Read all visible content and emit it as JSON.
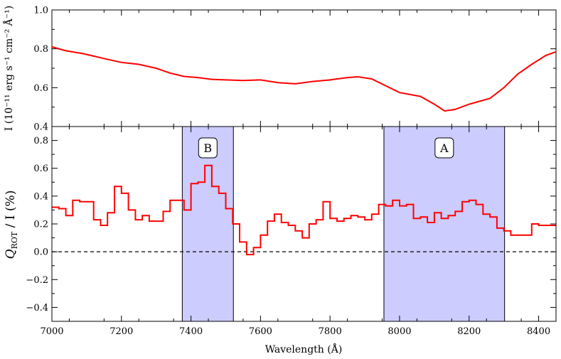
{
  "chart_data": [
    {
      "id": "intensity",
      "type": "line",
      "ylabel": "I (10⁻¹¹ erg s⁻¹ cm⁻² Å⁻¹)",
      "xlim": [
        7000,
        8450
      ],
      "ylim": [
        0.4,
        1.0
      ],
      "yticks": [
        0.4,
        0.6,
        0.8,
        1.0
      ],
      "ytick_labels": [
        "0.4",
        "0.6",
        "0.8",
        "1.0"
      ],
      "grid": false,
      "series": [
        {
          "color": "#ff0000",
          "x": [
            7000,
            7040,
            7090,
            7150,
            7200,
            7250,
            7300,
            7340,
            7380,
            7420,
            7460,
            7500,
            7550,
            7600,
            7650,
            7700,
            7750,
            7800,
            7850,
            7880,
            7920,
            7960,
            8000,
            8060,
            8100,
            8130,
            8160,
            8200,
            8260,
            8300,
            8340,
            8380,
            8420,
            8450
          ],
          "y": [
            0.81,
            0.79,
            0.775,
            0.75,
            0.73,
            0.72,
            0.7,
            0.675,
            0.658,
            0.652,
            0.643,
            0.64,
            0.637,
            0.64,
            0.626,
            0.62,
            0.632,
            0.64,
            0.652,
            0.656,
            0.645,
            0.61,
            0.575,
            0.555,
            0.515,
            0.48,
            0.488,
            0.515,
            0.545,
            0.6,
            0.67,
            0.72,
            0.765,
            0.785
          ]
        }
      ]
    },
    {
      "id": "polarization",
      "type": "line",
      "step": true,
      "xlabel": "Wavelength (Å)",
      "ylabel_main": "Q",
      "ylabel_sub": "ROT",
      "ylabel_tail": " / I (%)",
      "xlim": [
        7000,
        8450
      ],
      "ylim": [
        -0.5,
        0.9
      ],
      "xticks": [
        7000,
        7200,
        7400,
        7600,
        7800,
        8000,
        8200,
        8400
      ],
      "xtick_labels": [
        "7000",
        "7200",
        "7400",
        "7600",
        "7800",
        "8000",
        "8200",
        "8400"
      ],
      "yticks": [
        -0.4,
        -0.2,
        0.0,
        0.2,
        0.4,
        0.6,
        0.8
      ],
      "ytick_labels": [
        "−0.4",
        "−0.2",
        "0.0",
        "0.2",
        "0.4",
        "0.6",
        "0.8"
      ],
      "grid": false,
      "reference_line": {
        "y": 0.0,
        "style": "dashed",
        "color": "#000000"
      },
      "bands": [
        {
          "label": "B",
          "x0": 7375,
          "x1": 7522,
          "color": "#ccccff"
        },
        {
          "label": "A",
          "x0": 7955,
          "x1": 8302,
          "color": "#ccccff"
        }
      ],
      "series": [
        {
          "color": "#ff0000",
          "x": [
            7000,
            7020,
            7040,
            7060,
            7080,
            7120,
            7140,
            7160,
            7180,
            7200,
            7220,
            7240,
            7260,
            7280,
            7320,
            7340,
            7380,
            7400,
            7420,
            7440,
            7460,
            7480,
            7500,
            7520,
            7540,
            7560,
            7580,
            7600,
            7620,
            7640,
            7660,
            7680,
            7700,
            7720,
            7740,
            7760,
            7780,
            7800,
            7820,
            7840,
            7860,
            7880,
            7900,
            7920,
            7940,
            7960,
            7980,
            8000,
            8020,
            8040,
            8060,
            8080,
            8100,
            8120,
            8140,
            8160,
            8180,
            8200,
            8220,
            8240,
            8260,
            8280,
            8300,
            8320,
            8340,
            8360,
            8380,
            8400,
            8420,
            8440
          ],
          "y": [
            0.32,
            0.31,
            0.26,
            0.37,
            0.36,
            0.23,
            0.19,
            0.28,
            0.47,
            0.42,
            0.3,
            0.23,
            0.26,
            0.22,
            0.29,
            0.37,
            0.3,
            0.49,
            0.5,
            0.62,
            0.47,
            0.42,
            0.31,
            0.2,
            0.07,
            -0.02,
            0.03,
            0.12,
            0.22,
            0.27,
            0.21,
            0.19,
            0.15,
            0.1,
            0.2,
            0.23,
            0.36,
            0.24,
            0.22,
            0.24,
            0.26,
            0.25,
            0.23,
            0.27,
            0.34,
            0.33,
            0.37,
            0.33,
            0.34,
            0.24,
            0.25,
            0.21,
            0.28,
            0.24,
            0.26,
            0.29,
            0.36,
            0.37,
            0.34,
            0.27,
            0.25,
            0.17,
            0.15,
            0.12,
            0.12,
            0.12,
            0.2,
            0.19,
            0.19,
            0.19
          ]
        }
      ]
    }
  ]
}
